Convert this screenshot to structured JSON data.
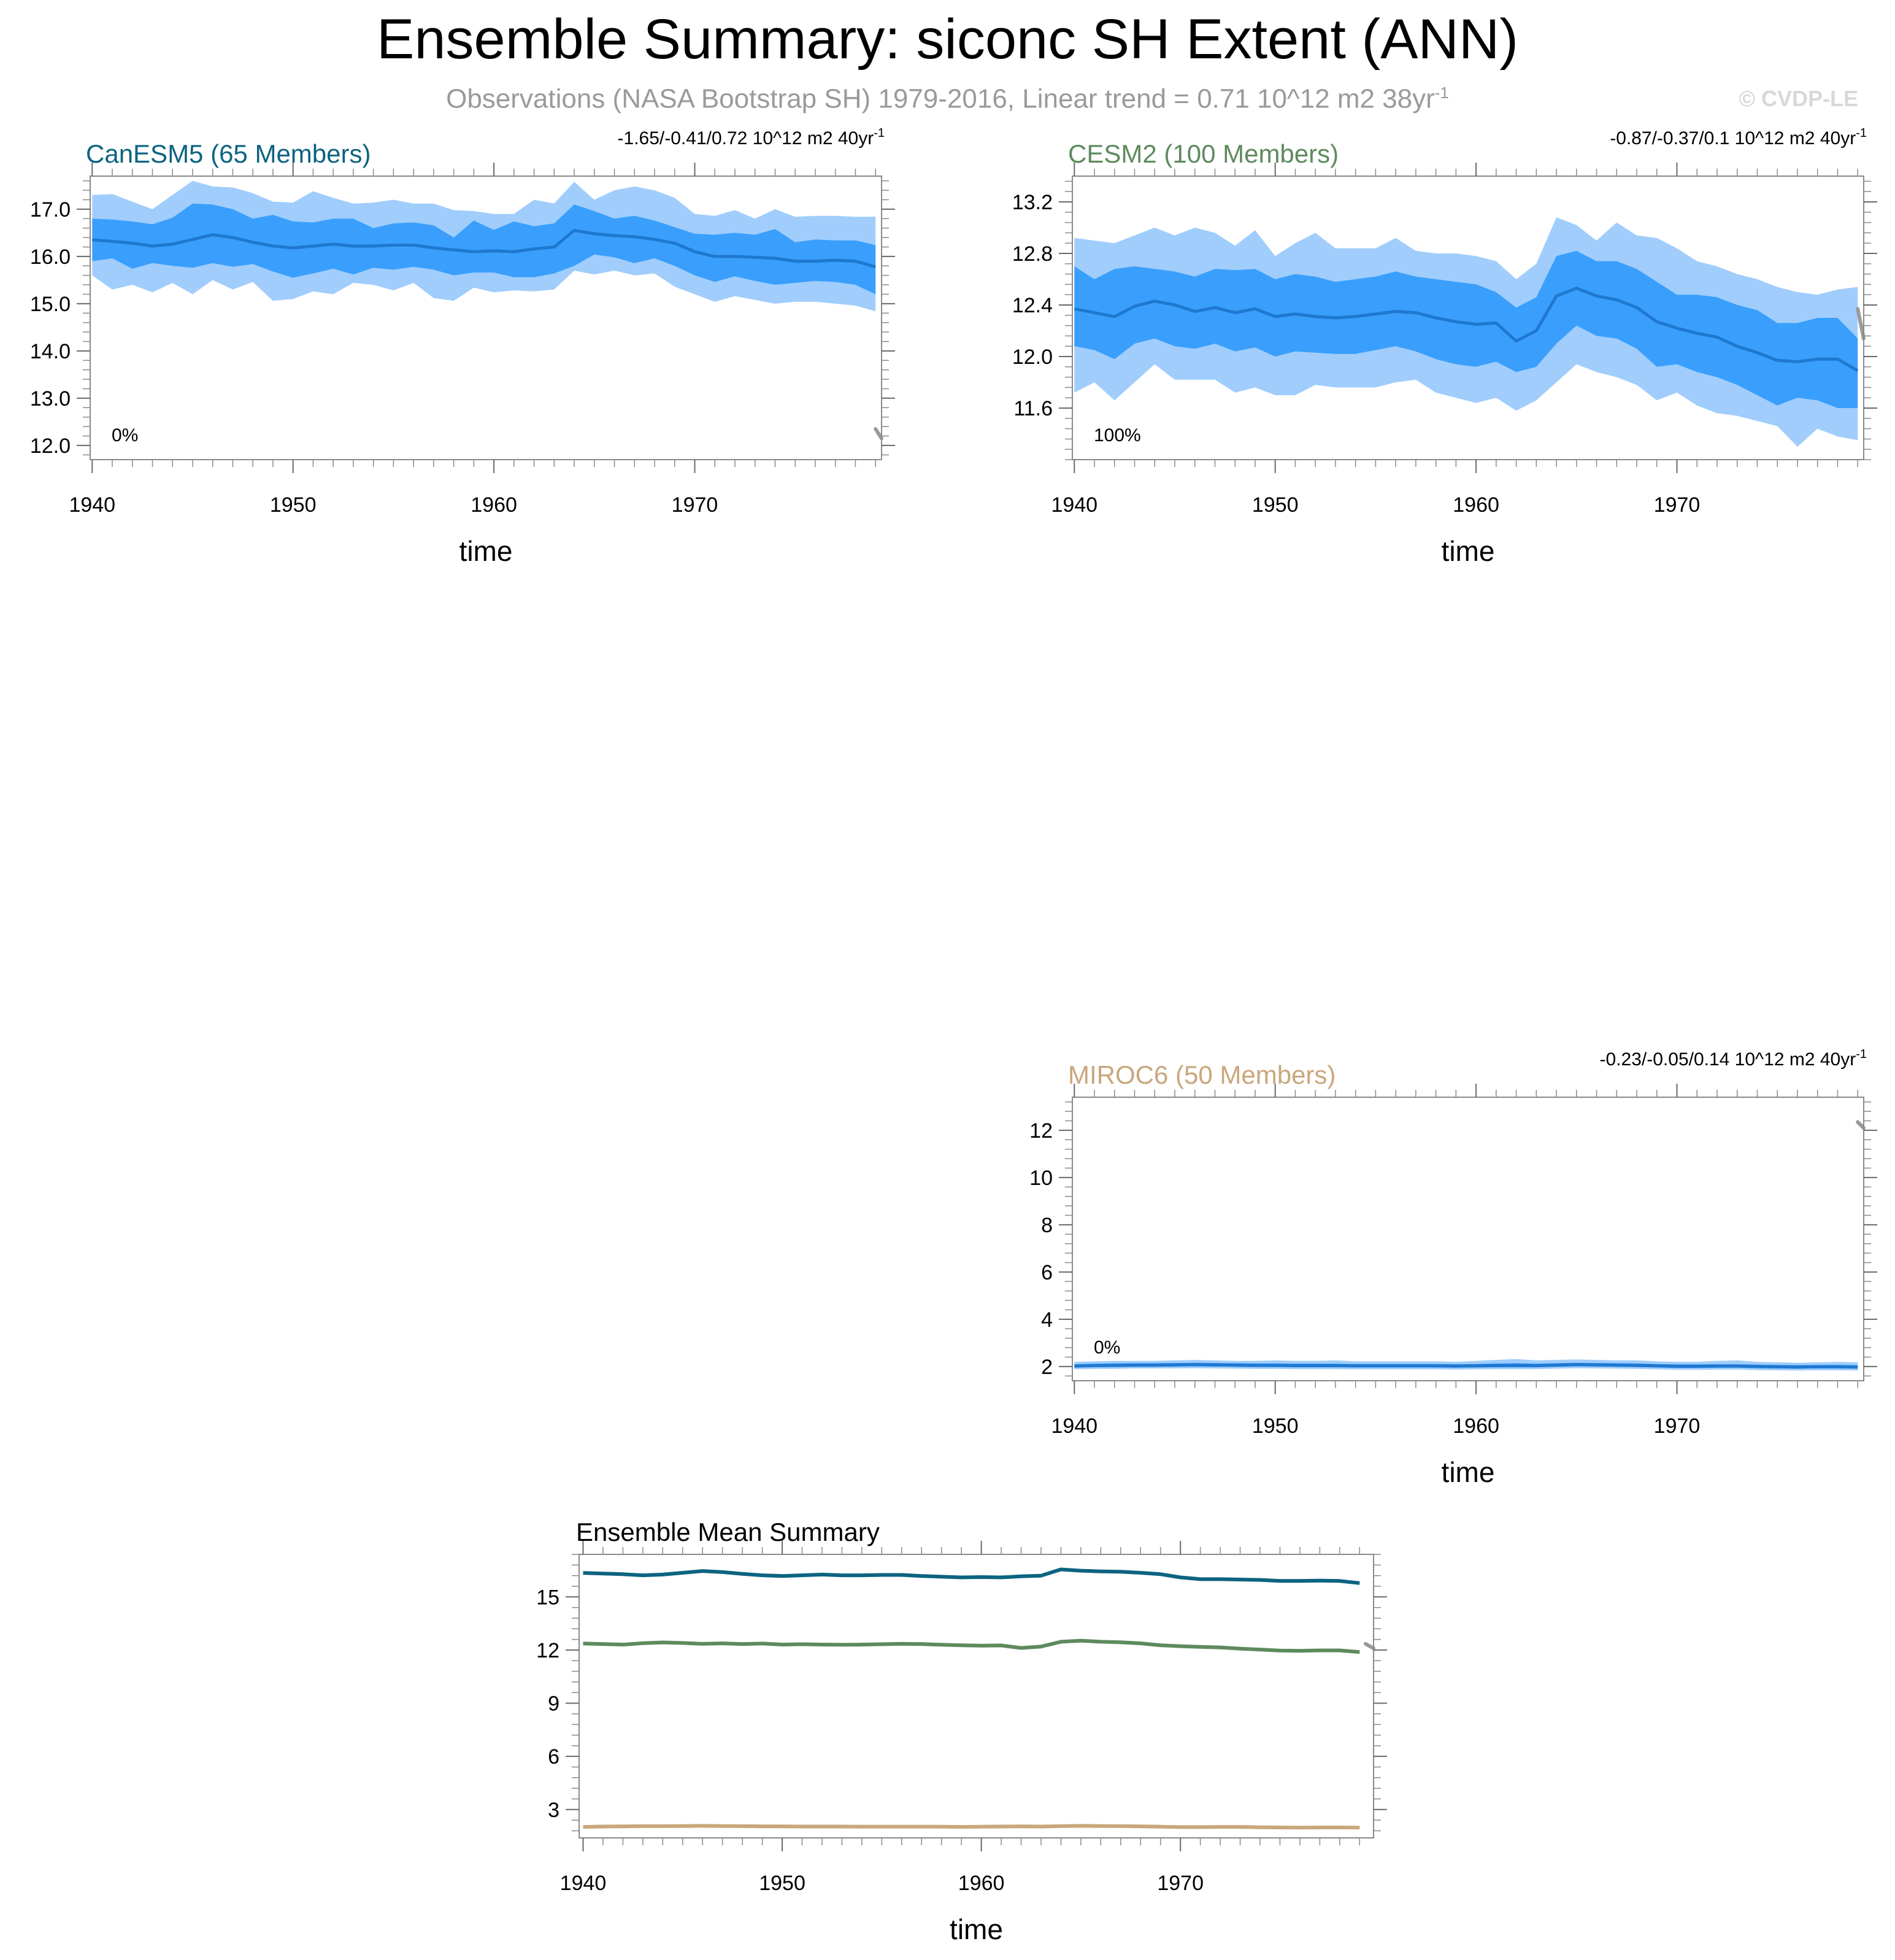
{
  "header": {
    "title": "Ensemble Summary: siconc SH Extent (ANN)",
    "subtitle_main": "Observations (NASA Bootstrap SH) 1979-2016, Linear trend = 0.71 10^12 m2 38yr",
    "subtitle_sup": "-1",
    "copyright": "© CVDP-LE"
  },
  "colors": {
    "outer_band": "#a0cdfc",
    "inner_band": "#3a9ffc",
    "ensemble_line": "#1f78d0",
    "obs_line": "#9a9a9a",
    "canesm5": "#0c6381",
    "cesm2": "#5e8a5e",
    "miroc6": "#c9a77c"
  },
  "chart_data": [
    {
      "id": "canesm5",
      "type": "area",
      "title": "CanESM5 (65 Members)",
      "trend_label": "-1.65/-0.41/0.72 10^12 m2 40yr",
      "trend_sup": "-1",
      "percent_label": "0%",
      "xlabel": "time",
      "xlim": [
        1939.9,
        1979.3
      ],
      "ylim": [
        11.7,
        17.7
      ],
      "yticks": [
        12.0,
        13.0,
        14.0,
        15.0,
        16.0,
        17.0
      ],
      "ytick_labels": [
        "12.0",
        "13.0",
        "14.0",
        "15.0",
        "16.0",
        "17.0"
      ],
      "xticks": [
        1940,
        1950,
        1960,
        1970
      ],
      "xtick_labels": [
        "1940",
        "1950",
        "1960",
        "1970"
      ],
      "years": [
        1940,
        1941,
        1942,
        1943,
        1944,
        1945,
        1946,
        1947,
        1948,
        1949,
        1950,
        1951,
        1952,
        1953,
        1954,
        1955,
        1956,
        1957,
        1958,
        1959,
        1960,
        1961,
        1962,
        1963,
        1964,
        1965,
        1966,
        1967,
        1968,
        1969,
        1970,
        1971,
        1972,
        1973,
        1974,
        1975,
        1976,
        1977,
        1978,
        1979
      ],
      "mean": [
        16.35,
        16.32,
        16.28,
        16.22,
        16.26,
        16.36,
        16.46,
        16.4,
        16.3,
        16.22,
        16.18,
        16.22,
        16.26,
        16.22,
        16.22,
        16.24,
        16.24,
        16.18,
        16.14,
        16.1,
        16.12,
        16.1,
        16.16,
        16.2,
        16.55,
        16.48,
        16.44,
        16.42,
        16.36,
        16.28,
        16.1,
        16.0,
        16.0,
        15.98,
        15.96,
        15.9,
        15.9,
        15.92,
        15.9,
        15.78
      ],
      "p10": [
        15.9,
        15.96,
        15.74,
        15.86,
        15.8,
        15.76,
        15.86,
        15.78,
        15.84,
        15.68,
        15.55,
        15.64,
        15.74,
        15.62,
        15.76,
        15.72,
        15.78,
        15.72,
        15.6,
        15.66,
        15.66,
        15.56,
        15.56,
        15.64,
        15.8,
        16.04,
        15.98,
        15.86,
        15.96,
        15.8,
        15.6,
        15.46,
        15.58,
        15.48,
        15.4,
        15.44,
        15.48,
        15.46,
        15.4,
        15.2
      ],
      "p90": [
        16.8,
        16.78,
        16.74,
        16.68,
        16.82,
        17.12,
        17.1,
        17.0,
        16.8,
        16.88,
        16.74,
        16.72,
        16.8,
        16.8,
        16.6,
        16.7,
        16.72,
        16.66,
        16.4,
        16.76,
        16.56,
        16.74,
        16.64,
        16.7,
        17.1,
        16.96,
        16.8,
        16.86,
        16.76,
        16.62,
        16.48,
        16.46,
        16.5,
        16.46,
        16.58,
        16.3,
        16.36,
        16.34,
        16.34,
        16.24
      ],
      "min": [
        15.6,
        15.3,
        15.4,
        15.24,
        15.44,
        15.2,
        15.5,
        15.3,
        15.46,
        15.06,
        15.1,
        15.26,
        15.2,
        15.44,
        15.4,
        15.28,
        15.44,
        15.12,
        15.06,
        15.34,
        15.24,
        15.28,
        15.26,
        15.3,
        15.7,
        15.62,
        15.7,
        15.6,
        15.64,
        15.36,
        15.2,
        15.04,
        15.16,
        15.08,
        15.0,
        15.04,
        15.04,
        15.0,
        14.96,
        14.84
      ],
      "max": [
        17.3,
        17.32,
        17.16,
        17.0,
        17.3,
        17.6,
        17.48,
        17.46,
        17.34,
        17.16,
        17.14,
        17.38,
        17.24,
        17.12,
        17.14,
        17.2,
        17.12,
        17.12,
        16.98,
        16.96,
        16.9,
        16.9,
        17.2,
        17.12,
        17.58,
        17.2,
        17.4,
        17.48,
        17.4,
        17.24,
        16.9,
        16.86,
        16.98,
        16.8,
        17.0,
        16.84,
        16.86,
        16.86,
        16.84,
        16.84
      ],
      "obs_segment": [
        [
          1979.0,
          12.35
        ],
        [
          1979.3,
          12.15
        ]
      ],
      "color_key": "canesm5"
    },
    {
      "id": "cesm2",
      "type": "area",
      "title": "CESM2 (100 Members)",
      "trend_label": "-0.87/-0.37/0.1 10^12 m2 40yr",
      "trend_sup": "-1",
      "percent_label": "100%",
      "xlabel": "time",
      "xlim": [
        1939.9,
        1979.3
      ],
      "ylim": [
        11.2,
        13.4
      ],
      "yticks": [
        11.6,
        12.0,
        12.4,
        12.8,
        13.2
      ],
      "ytick_labels": [
        "11.6",
        "12.0",
        "12.4",
        "12.8",
        "13.2"
      ],
      "xticks": [
        1940,
        1950,
        1960,
        1970
      ],
      "xtick_labels": [
        "1940",
        "1950",
        "1960",
        "1970"
      ],
      "years": [
        1940,
        1941,
        1942,
        1943,
        1944,
        1945,
        1946,
        1947,
        1948,
        1949,
        1950,
        1951,
        1952,
        1953,
        1954,
        1955,
        1956,
        1957,
        1958,
        1959,
        1960,
        1961,
        1962,
        1963,
        1964,
        1965,
        1966,
        1967,
        1968,
        1969,
        1970,
        1971,
        1972,
        1973,
        1974,
        1975,
        1976,
        1977,
        1978,
        1979
      ],
      "mean": [
        12.37,
        12.34,
        12.31,
        12.39,
        12.43,
        12.4,
        12.35,
        12.38,
        12.34,
        12.37,
        12.31,
        12.33,
        12.31,
        12.3,
        12.31,
        12.33,
        12.35,
        12.34,
        12.3,
        12.27,
        12.25,
        12.26,
        12.12,
        12.2,
        12.47,
        12.53,
        12.47,
        12.44,
        12.38,
        12.27,
        12.22,
        12.18,
        12.15,
        12.08,
        12.03,
        11.97,
        11.96,
        11.98,
        11.98,
        11.89
      ],
      "p10": [
        12.08,
        12.05,
        11.98,
        12.1,
        12.14,
        12.08,
        12.06,
        12.1,
        12.04,
        12.07,
        12.0,
        12.04,
        12.03,
        12.02,
        12.02,
        12.05,
        12.08,
        12.04,
        11.98,
        11.94,
        11.92,
        11.96,
        11.88,
        11.92,
        12.1,
        12.24,
        12.16,
        12.14,
        12.06,
        11.92,
        11.94,
        11.88,
        11.84,
        11.78,
        11.7,
        11.62,
        11.68,
        11.66,
        11.6,
        11.6
      ],
      "p90": [
        12.7,
        12.6,
        12.68,
        12.7,
        12.68,
        12.66,
        12.62,
        12.68,
        12.67,
        12.68,
        12.6,
        12.64,
        12.62,
        12.58,
        12.6,
        12.62,
        12.66,
        12.62,
        12.6,
        12.58,
        12.56,
        12.5,
        12.38,
        12.46,
        12.78,
        12.82,
        12.74,
        12.74,
        12.68,
        12.58,
        12.48,
        12.48,
        12.46,
        12.4,
        12.36,
        12.26,
        12.26,
        12.3,
        12.3,
        12.14
      ],
      "min": [
        11.72,
        11.8,
        11.66,
        11.8,
        11.94,
        11.82,
        11.82,
        11.82,
        11.72,
        11.76,
        11.7,
        11.7,
        11.78,
        11.76,
        11.76,
        11.76,
        11.8,
        11.82,
        11.72,
        11.68,
        11.64,
        11.68,
        11.58,
        11.66,
        11.8,
        11.94,
        11.88,
        11.84,
        11.78,
        11.66,
        11.72,
        11.62,
        11.56,
        11.54,
        11.5,
        11.46,
        11.3,
        11.44,
        11.38,
        11.35
      ],
      "max": [
        12.92,
        12.9,
        12.88,
        12.94,
        13.0,
        12.94,
        13.0,
        12.96,
        12.86,
        12.98,
        12.78,
        12.88,
        12.96,
        12.84,
        12.84,
        12.84,
        12.92,
        12.82,
        12.8,
        12.8,
        12.78,
        12.74,
        12.6,
        12.72,
        13.08,
        13.02,
        12.9,
        13.04,
        12.94,
        12.92,
        12.84,
        12.74,
        12.7,
        12.64,
        12.6,
        12.54,
        12.5,
        12.48,
        12.52,
        12.54
      ],
      "obs_segment": [
        [
          1979.0,
          12.37
        ],
        [
          1979.3,
          12.14
        ]
      ],
      "color_key": "cesm2"
    },
    {
      "id": "miroc6",
      "type": "area",
      "title": "MIROC6 (50 Members)",
      "trend_label": "-0.23/-0.05/0.14 10^12 m2 40yr",
      "trend_sup": "-1",
      "percent_label": "0%",
      "xlabel": "time",
      "xlim": [
        1939.9,
        1979.3
      ],
      "ylim": [
        1.4,
        13.4
      ],
      "yticks": [
        2,
        4,
        6,
        8,
        10,
        12
      ],
      "ytick_labels": [
        "2",
        "4",
        "6",
        "8",
        "10",
        "12"
      ],
      "xticks": [
        1940,
        1950,
        1960,
        1970
      ],
      "xtick_labels": [
        "1940",
        "1950",
        "1960",
        "1970"
      ],
      "years": [
        1940,
        1941,
        1942,
        1943,
        1944,
        1945,
        1946,
        1947,
        1948,
        1949,
        1950,
        1951,
        1952,
        1953,
        1954,
        1955,
        1956,
        1957,
        1958,
        1959,
        1960,
        1961,
        1962,
        1963,
        1964,
        1965,
        1966,
        1967,
        1968,
        1969,
        1970,
        1971,
        1972,
        1973,
        1974,
        1975,
        1976,
        1977,
        1978,
        1979
      ],
      "mean": [
        2.02,
        2.04,
        2.05,
        2.06,
        2.06,
        2.07,
        2.08,
        2.07,
        2.06,
        2.05,
        2.05,
        2.04,
        2.04,
        2.04,
        2.03,
        2.03,
        2.03,
        2.03,
        2.03,
        2.02,
        2.03,
        2.04,
        2.05,
        2.04,
        2.06,
        2.08,
        2.07,
        2.06,
        2.05,
        2.03,
        2.01,
        2.01,
        2.02,
        2.02,
        2.0,
        1.99,
        1.98,
        1.99,
        1.99,
        1.98
      ],
      "p10": [
        1.96,
        1.98,
        1.98,
        1.99,
        1.99,
        2.0,
        2.01,
        2.0,
        1.99,
        1.98,
        1.98,
        1.97,
        1.97,
        1.97,
        1.96,
        1.96,
        1.96,
        1.96,
        1.96,
        1.95,
        1.96,
        1.97,
        1.97,
        1.97,
        1.99,
        2.01,
        2.0,
        1.99,
        1.98,
        1.96,
        1.94,
        1.94,
        1.95,
        1.95,
        1.93,
        1.92,
        1.91,
        1.92,
        1.92,
        1.91
      ],
      "p90": [
        2.1,
        2.12,
        2.13,
        2.14,
        2.14,
        2.15,
        2.16,
        2.15,
        2.14,
        2.13,
        2.13,
        2.12,
        2.12,
        2.12,
        2.11,
        2.11,
        2.11,
        2.11,
        2.11,
        2.1,
        2.11,
        2.13,
        2.14,
        2.12,
        2.14,
        2.16,
        2.15,
        2.14,
        2.13,
        2.11,
        2.09,
        2.09,
        2.1,
        2.1,
        2.08,
        2.07,
        2.06,
        2.07,
        2.07,
        2.06
      ],
      "min": [
        1.88,
        1.9,
        1.9,
        1.92,
        1.92,
        1.92,
        1.93,
        1.92,
        1.91,
        1.9,
        1.9,
        1.89,
        1.89,
        1.89,
        1.88,
        1.88,
        1.88,
        1.88,
        1.88,
        1.87,
        1.88,
        1.89,
        1.89,
        1.89,
        1.91,
        1.93,
        1.92,
        1.91,
        1.9,
        1.88,
        1.86,
        1.86,
        1.87,
        1.87,
        1.85,
        1.84,
        1.83,
        1.84,
        1.84,
        1.83
      ],
      "max": [
        2.2,
        2.22,
        2.24,
        2.24,
        2.24,
        2.26,
        2.28,
        2.26,
        2.24,
        2.24,
        2.26,
        2.24,
        2.24,
        2.26,
        2.22,
        2.22,
        2.22,
        2.22,
        2.22,
        2.2,
        2.24,
        2.28,
        2.32,
        2.26,
        2.28,
        2.3,
        2.28,
        2.26,
        2.26,
        2.22,
        2.2,
        2.2,
        2.24,
        2.26,
        2.2,
        2.18,
        2.16,
        2.18,
        2.2,
        2.18
      ],
      "obs_segment": [
        [
          1979.0,
          12.35
        ],
        [
          1979.3,
          12.1
        ]
      ],
      "color_key": "miroc6"
    },
    {
      "id": "ensemble-mean",
      "type": "line",
      "title": "Ensemble Mean Summary",
      "xlabel": "time",
      "xlim": [
        1939.8,
        1979.7
      ],
      "ylim": [
        1.4,
        17.4
      ],
      "yticks": [
        3,
        6,
        9,
        12,
        15
      ],
      "ytick_labels": [
        "3",
        "6",
        "9",
        "12",
        "15"
      ],
      "xticks": [
        1940,
        1950,
        1960,
        1970
      ],
      "xtick_labels": [
        "1940",
        "1950",
        "1960",
        "1970"
      ],
      "series": [
        {
          "name": "CanESM5",
          "color_key": "canesm5",
          "values": [
            16.35,
            16.32,
            16.28,
            16.22,
            16.26,
            16.36,
            16.46,
            16.4,
            16.3,
            16.22,
            16.18,
            16.22,
            16.26,
            16.22,
            16.22,
            16.24,
            16.24,
            16.18,
            16.14,
            16.1,
            16.12,
            16.1,
            16.16,
            16.2,
            16.55,
            16.48,
            16.44,
            16.42,
            16.36,
            16.28,
            16.1,
            16.0,
            16.0,
            15.98,
            15.96,
            15.9,
            15.9,
            15.92,
            15.9,
            15.78
          ]
        },
        {
          "name": "CESM2",
          "color_key": "cesm2",
          "values": [
            12.37,
            12.34,
            12.31,
            12.39,
            12.43,
            12.4,
            12.35,
            12.38,
            12.34,
            12.37,
            12.31,
            12.33,
            12.31,
            12.3,
            12.31,
            12.33,
            12.35,
            12.34,
            12.3,
            12.27,
            12.25,
            12.26,
            12.12,
            12.2,
            12.47,
            12.53,
            12.47,
            12.44,
            12.38,
            12.27,
            12.22,
            12.18,
            12.15,
            12.08,
            12.03,
            11.97,
            11.96,
            11.98,
            11.98,
            11.89
          ]
        },
        {
          "name": "MIROC6",
          "color_key": "miroc6",
          "values": [
            2.02,
            2.04,
            2.05,
            2.06,
            2.06,
            2.07,
            2.08,
            2.07,
            2.06,
            2.05,
            2.05,
            2.04,
            2.04,
            2.04,
            2.03,
            2.03,
            2.03,
            2.03,
            2.03,
            2.02,
            2.03,
            2.04,
            2.05,
            2.04,
            2.06,
            2.08,
            2.07,
            2.06,
            2.05,
            2.03,
            2.01,
            2.01,
            2.02,
            2.02,
            2.0,
            1.99,
            1.98,
            1.99,
            1.99,
            1.98
          ]
        }
      ],
      "obs_segment": [
        [
          1979.3,
          12.35
        ],
        [
          1979.7,
          12.1
        ]
      ]
    }
  ]
}
